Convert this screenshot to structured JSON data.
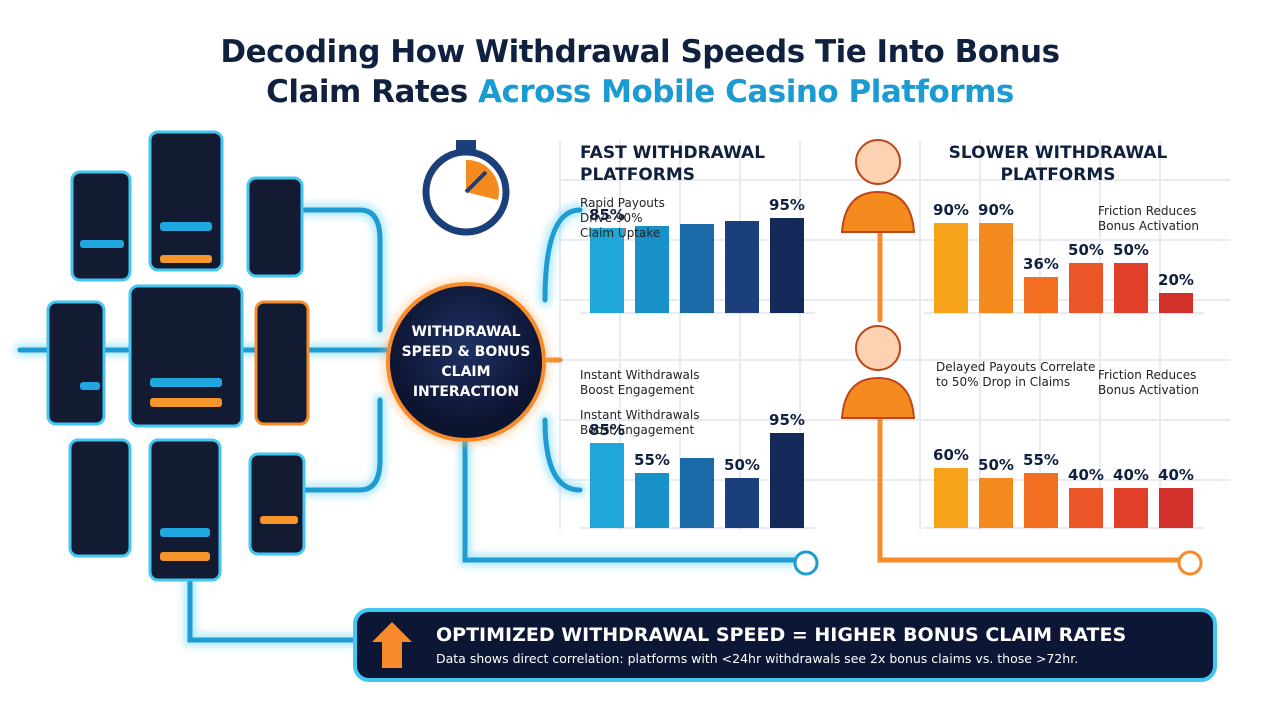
{
  "title": {
    "line1": "Decoding How Withdrawal Speeds Tie Into Bonus",
    "line2_a": "Claim Rates",
    "line2_b": "Across Mobile Casino Platforms"
  },
  "hub": {
    "label": "WITHDRAWAL SPEED & BONUS CLAIM INTERACTION"
  },
  "charts": [
    {
      "heading": "FAST WITHDRAWAL PLATFORMS",
      "notes": [
        "Rapid Payouts Drive 90% Claim Uptake"
      ],
      "values": [
        85,
        87,
        89,
        92,
        95
      ],
      "value_labels": [
        "85%",
        null,
        null,
        null,
        "95%"
      ],
      "colors": [
        "#1ea7d8",
        "#1890c8",
        "#1a6aa8",
        "#1b3f7a",
        "#14285a"
      ],
      "ylim": [
        0,
        100
      ]
    },
    {
      "heading": null,
      "notes": [
        "Instant Withdrawals Boost Engagement",
        "Instant Withdrawals Boost Engagement"
      ],
      "values": [
        85,
        55,
        70,
        50,
        95
      ],
      "value_labels": [
        "85%",
        "55%",
        null,
        "50%",
        "95%"
      ],
      "colors": [
        "#1ea7d8",
        "#1890c8",
        "#1a6aa8",
        "#1b3f7a",
        "#14285a"
      ],
      "ylim": [
        0,
        100
      ]
    },
    {
      "heading": "SLOWER WITHDRAWAL PLATFORMS",
      "notes": [
        "Friction Reduces Bonus Activation"
      ],
      "values": [
        90,
        90,
        36,
        50,
        50,
        20
      ],
      "value_labels": [
        "90%",
        "90%",
        "36%",
        "50%",
        "50%",
        "20%"
      ],
      "colors": [
        "#f7a21b",
        "#f58a1f",
        "#f26f22",
        "#ec5527",
        "#e23f2a",
        "#d2302b"
      ],
      "ylim": [
        0,
        100
      ]
    },
    {
      "heading": null,
      "notes": [
        "Delayed Payouts Correlate to 50% Drop in Claims",
        "Friction Reduces Bonus Activation"
      ],
      "values": [
        60,
        50,
        55,
        40,
        40,
        40
      ],
      "value_labels": [
        "60%",
        "50%",
        "55%",
        "40%",
        "40%",
        "40%"
      ],
      "colors": [
        "#f7a21b",
        "#f58a1f",
        "#f26f22",
        "#ec5527",
        "#e23f2a",
        "#d2302b"
      ],
      "ylim": [
        0,
        100
      ]
    }
  ],
  "banner": {
    "headline": "OPTIMIZED WITHDRAWAL SPEED = HIGHER BONUS CLAIM RATES",
    "detail": "Data shows direct correlation: platforms with <24hr withdrawals see 2x bonus claims vs. those >72hr."
  }
}
